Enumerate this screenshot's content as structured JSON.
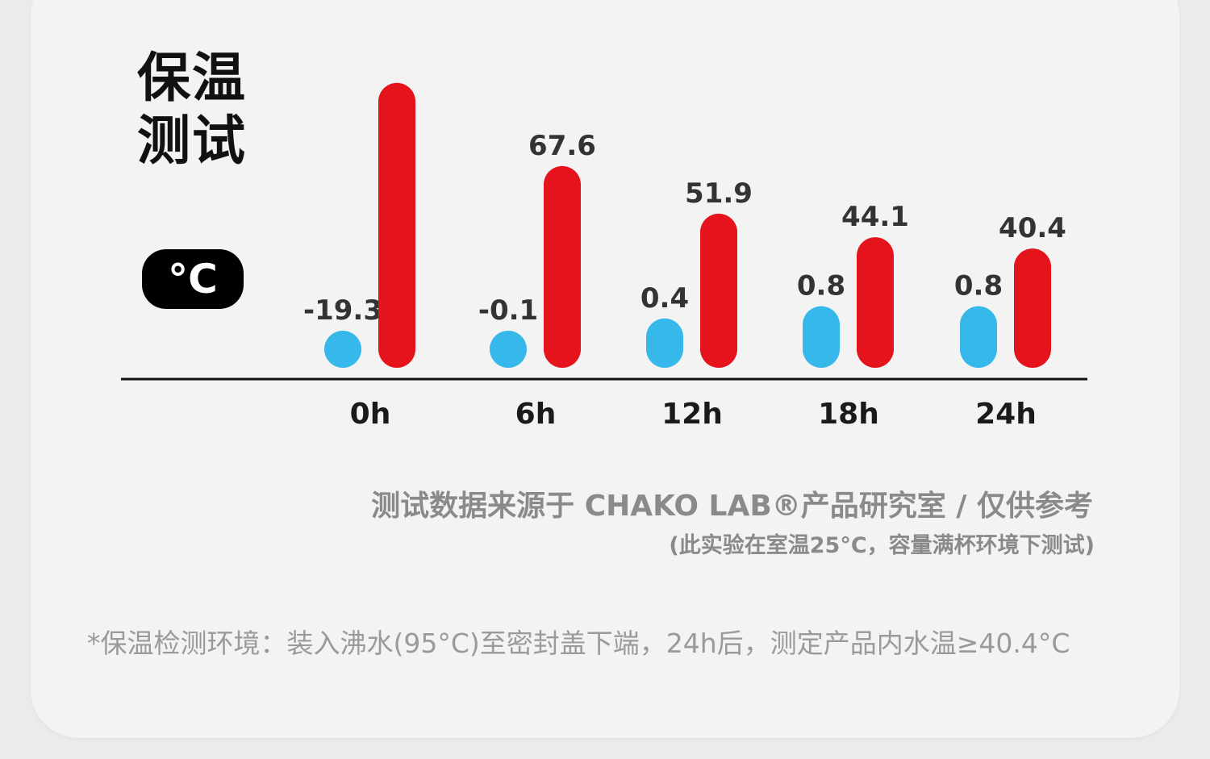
{
  "title": {
    "line1": "保温",
    "line2": "测试"
  },
  "unit_badge": "°C",
  "chart_data": {
    "type": "bar",
    "categories": [
      "0h",
      "6h",
      "12h",
      "18h",
      "24h"
    ],
    "series": [
      {
        "values": [
          -19.3,
          -0.1,
          0.4,
          0.8,
          0.8
        ],
        "labels": [
          "-19.3",
          "-0.1",
          "0.4",
          "0.8",
          "0.8"
        ],
        "color": "#37b8ea"
      },
      {
        "values": [
          95,
          67.6,
          51.9,
          44.1,
          40.4
        ],
        "labels": [
          "",
          "67.6",
          "51.9",
          "44.1",
          "40.4"
        ],
        "color": "#e5131b"
      }
    ],
    "ylabel": "°C"
  },
  "source": {
    "text": "测试数据来源于 CHAKO LAB®产品研究室 / 仅供参考"
  },
  "note": {
    "text": "(此实验在室温25°C，容量满杯环境下测试)"
  },
  "footnote": {
    "text": "*保温检测环境：装入沸水(95°C)至密封盖下端，24h后，测定产品内水温≥40.4°C"
  },
  "colors": {
    "cold": "#37b8ea",
    "hot": "#e5131b",
    "axis": "#111111"
  }
}
